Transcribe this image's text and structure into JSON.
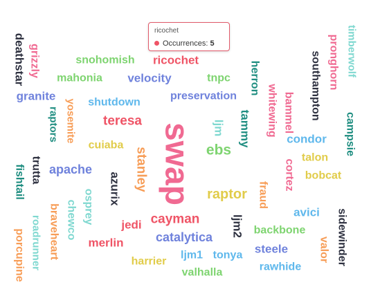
{
  "palette": {
    "red": "#ef5466",
    "orange": "#f79d57",
    "yellow": "#e1cc4a",
    "green": "#7ed470",
    "teal": "#1e8d80",
    "cyan": "#7fd8d0",
    "sky": "#5fb8ec",
    "blue": "#6f82dc",
    "pink": "#f06a92",
    "dark": "#2e3140"
  },
  "tooltip": {
    "title": "ricochet",
    "label": "Occurrences:",
    "value": "5",
    "dot_color": "#ef5466"
  },
  "chart_data": {
    "type": "wordcloud",
    "value_label": "Occurrences",
    "words": [
      {
        "text": "swap",
        "color": "pink",
        "rotated": true
      },
      {
        "text": "ricochet",
        "value": 5,
        "color": "red",
        "rotated": false
      },
      {
        "text": "deathstar",
        "color": "dark",
        "rotated": true
      },
      {
        "text": "grizzly",
        "color": "pink",
        "rotated": true
      },
      {
        "text": "snohomish",
        "color": "green",
        "rotated": false
      },
      {
        "text": "timberwolf",
        "color": "cyan",
        "rotated": true
      },
      {
        "text": "pronghorn",
        "color": "pink",
        "rotated": true
      },
      {
        "text": "southampton",
        "color": "dark",
        "rotated": true
      },
      {
        "text": "mahonia",
        "color": "green",
        "rotated": false
      },
      {
        "text": "velocity",
        "color": "blue",
        "rotated": false
      },
      {
        "text": "tnpc",
        "color": "green",
        "rotated": false
      },
      {
        "text": "herron",
        "color": "teal",
        "rotated": true
      },
      {
        "text": "granite",
        "color": "blue",
        "rotated": false
      },
      {
        "text": "yosemite",
        "color": "orange",
        "rotated": true
      },
      {
        "text": "preservation",
        "color": "blue",
        "rotated": false
      },
      {
        "text": "shutdown",
        "color": "sky",
        "rotated": false
      },
      {
        "text": "whitewing",
        "color": "pink",
        "rotated": true
      },
      {
        "text": "bammel",
        "color": "pink",
        "rotated": true
      },
      {
        "text": "campsie",
        "color": "teal",
        "rotated": true
      },
      {
        "text": "raptors",
        "color": "teal",
        "rotated": true
      },
      {
        "text": "teresa",
        "color": "red",
        "rotated": false
      },
      {
        "text": "ljm",
        "color": "cyan",
        "rotated": true
      },
      {
        "text": "tammy",
        "color": "teal",
        "rotated": true
      },
      {
        "text": "condor",
        "color": "sky",
        "rotated": false
      },
      {
        "text": "cuiaba",
        "color": "yellow",
        "rotated": false
      },
      {
        "text": "stanley",
        "color": "orange",
        "rotated": true
      },
      {
        "text": "ebs",
        "color": "green",
        "rotated": false
      },
      {
        "text": "talon",
        "color": "yellow",
        "rotated": false
      },
      {
        "text": "trutta",
        "color": "dark",
        "rotated": true
      },
      {
        "text": "fishtail",
        "color": "teal",
        "rotated": true
      },
      {
        "text": "apache",
        "color": "blue",
        "rotated": false
      },
      {
        "text": "azurix",
        "color": "dark",
        "rotated": true
      },
      {
        "text": "cortez",
        "color": "pink",
        "rotated": true
      },
      {
        "text": "bobcat",
        "color": "yellow",
        "rotated": false
      },
      {
        "text": "fraud",
        "color": "orange",
        "rotated": true
      },
      {
        "text": "raptor",
        "color": "yellow",
        "rotated": false
      },
      {
        "text": "osprey",
        "color": "cyan",
        "rotated": true
      },
      {
        "text": "chewco",
        "color": "cyan",
        "rotated": true
      },
      {
        "text": "braveheart",
        "color": "orange",
        "rotated": true
      },
      {
        "text": "roadrunner",
        "color": "cyan",
        "rotated": true
      },
      {
        "text": "porcupine",
        "color": "orange",
        "rotated": true
      },
      {
        "text": "avici",
        "color": "sky",
        "rotated": false
      },
      {
        "text": "sidewinder",
        "color": "dark",
        "rotated": true
      },
      {
        "text": "jedi",
        "color": "red",
        "rotated": false
      },
      {
        "text": "cayman",
        "color": "red",
        "rotated": false
      },
      {
        "text": "ljm2",
        "color": "dark",
        "rotated": true
      },
      {
        "text": "backbone",
        "color": "green",
        "rotated": false
      },
      {
        "text": "catalytica",
        "color": "blue",
        "rotated": false
      },
      {
        "text": "merlin",
        "color": "red",
        "rotated": false
      },
      {
        "text": "valor",
        "color": "orange",
        "rotated": true
      },
      {
        "text": "steele",
        "color": "blue",
        "rotated": false
      },
      {
        "text": "ljm1",
        "color": "sky",
        "rotated": false
      },
      {
        "text": "tonya",
        "color": "sky",
        "rotated": false
      },
      {
        "text": "harrier",
        "color": "yellow",
        "rotated": false
      },
      {
        "text": "rawhide",
        "color": "sky",
        "rotated": false
      },
      {
        "text": "valhalla",
        "color": "green",
        "rotated": false
      }
    ]
  }
}
